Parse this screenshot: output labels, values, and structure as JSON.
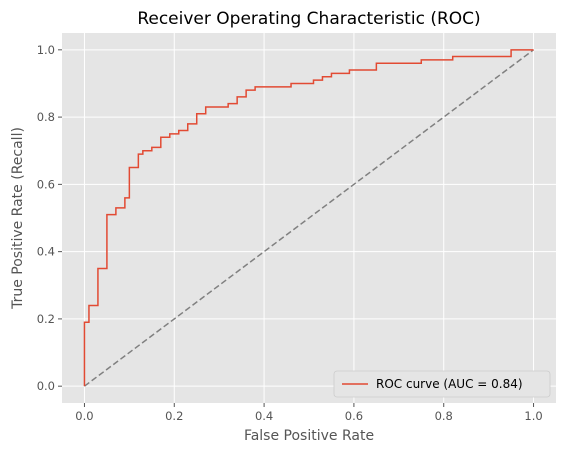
{
  "chart_data": {
    "type": "line",
    "title": "Receiver Operating Characteristic (ROC)",
    "xlabel": "False Positive Rate",
    "ylabel": "True Positive Rate (Recall)",
    "xlim": [
      -0.05,
      1.05
    ],
    "ylim": [
      -0.05,
      1.05
    ],
    "x_ticks": [
      "0.0",
      "0.2",
      "0.4",
      "0.6",
      "0.8",
      "1.0"
    ],
    "y_ticks": [
      "0.0",
      "0.2",
      "0.4",
      "0.6",
      "0.8",
      "1.0"
    ],
    "x_tick_values": [
      0,
      0.2,
      0.4,
      0.6,
      0.8,
      1.0
    ],
    "y_tick_values": [
      0,
      0.2,
      0.4,
      0.6,
      0.8,
      1.0
    ],
    "grid": true,
    "legend_position": "bottom-right",
    "series": [
      {
        "name": "ROC curve (AUC = 0.84)",
        "color": "#E24A33",
        "style": "step",
        "fpr": [
          0,
          0,
          0.01,
          0.01,
          0.03,
          0.03,
          0.05,
          0.05,
          0.07,
          0.07,
          0.09,
          0.09,
          0.1,
          0.1,
          0.12,
          0.12,
          0.13,
          0.13,
          0.15,
          0.15,
          0.17,
          0.17,
          0.19,
          0.19,
          0.21,
          0.21,
          0.23,
          0.23,
          0.25,
          0.25,
          0.27,
          0.27,
          0.32,
          0.32,
          0.34,
          0.34,
          0.36,
          0.36,
          0.38,
          0.38,
          0.46,
          0.46,
          0.51,
          0.51,
          0.53,
          0.53,
          0.55,
          0.55,
          0.57,
          0.57,
          0.59,
          0.59,
          0.63,
          0.63,
          0.65,
          0.65,
          0.69,
          0.69,
          0.75,
          0.75,
          0.82,
          0.82,
          0.85,
          0.85,
          0.95,
          0.95,
          0.98,
          0.98,
          1.0
        ],
        "tpr": [
          0,
          0.19,
          0.19,
          0.24,
          0.24,
          0.35,
          0.35,
          0.51,
          0.51,
          0.53,
          0.53,
          0.56,
          0.56,
          0.65,
          0.65,
          0.69,
          0.69,
          0.7,
          0.7,
          0.71,
          0.71,
          0.74,
          0.74,
          0.75,
          0.75,
          0.76,
          0.76,
          0.78,
          0.78,
          0.81,
          0.81,
          0.83,
          0.83,
          0.84,
          0.84,
          0.86,
          0.86,
          0.88,
          0.88,
          0.89,
          0.89,
          0.9,
          0.9,
          0.91,
          0.91,
          0.92,
          0.92,
          0.93,
          0.93,
          0.93,
          0.93,
          0.94,
          0.94,
          0.94,
          0.94,
          0.96,
          0.96,
          0.96,
          0.96,
          0.97,
          0.97,
          0.98,
          0.98,
          0.98,
          0.98,
          1.0,
          1.0,
          1.0,
          1.0
        ]
      },
      {
        "name": "",
        "color": "#808080",
        "style": "dashed",
        "fpr": [
          0,
          1
        ],
        "tpr": [
          0,
          1
        ]
      }
    ]
  }
}
